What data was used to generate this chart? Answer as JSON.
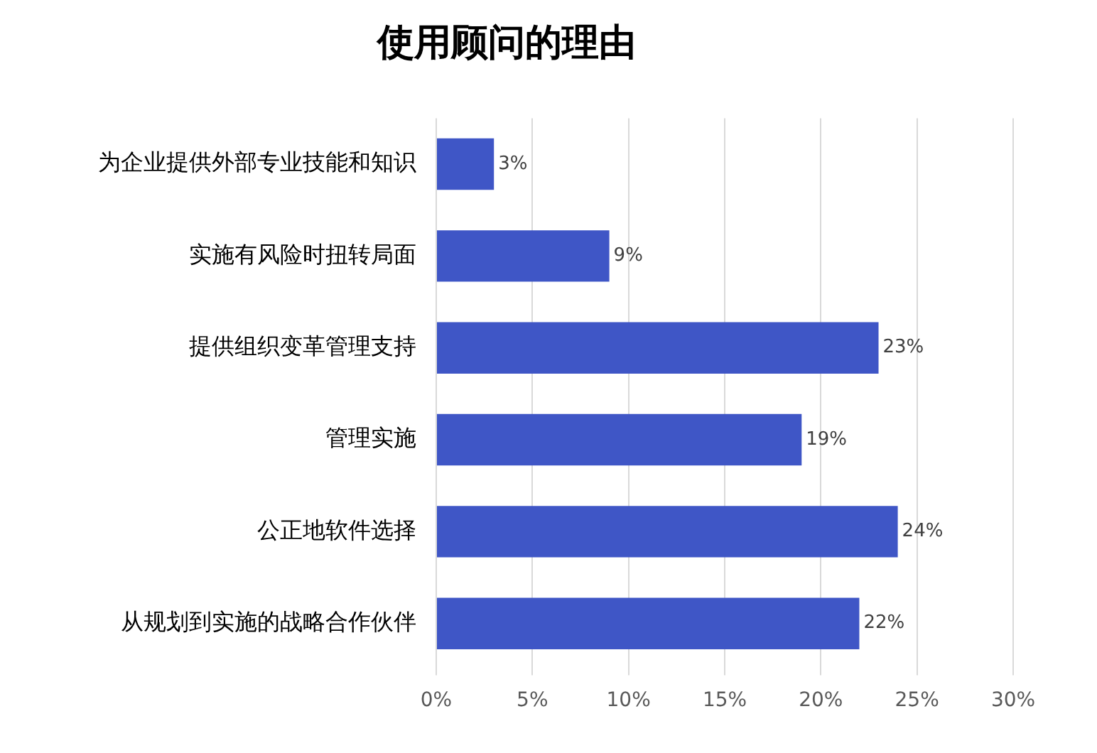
{
  "chart_data": {
    "type": "bar",
    "title": "使用顾问的理由",
    "orientation": "horizontal",
    "categories": [
      "为企业提供外部专业技能和知识",
      "实施有风险时扭转局面",
      "提供组织变革管理支持",
      "管理实施",
      "公正地软件选择",
      "从规划到实施的战略合作伙伴"
    ],
    "values": [
      3,
      9,
      23,
      19,
      24,
      22
    ],
    "color": "#3f56c6",
    "value_labels": [
      "3%",
      "9%",
      "23%",
      "19%",
      "24%",
      "22%"
    ],
    "xlim": [
      0,
      30
    ],
    "xticks": [
      {
        "value": 0,
        "label": "0%"
      },
      {
        "value": 5,
        "label": "5%"
      },
      {
        "value": 10,
        "label": "10%"
      },
      {
        "value": 15,
        "label": "15%"
      },
      {
        "value": 20,
        "label": "20%"
      },
      {
        "value": 25,
        "label": "25%"
      },
      {
        "value": 30,
        "label": "30%"
      }
    ],
    "grid": "x"
  }
}
